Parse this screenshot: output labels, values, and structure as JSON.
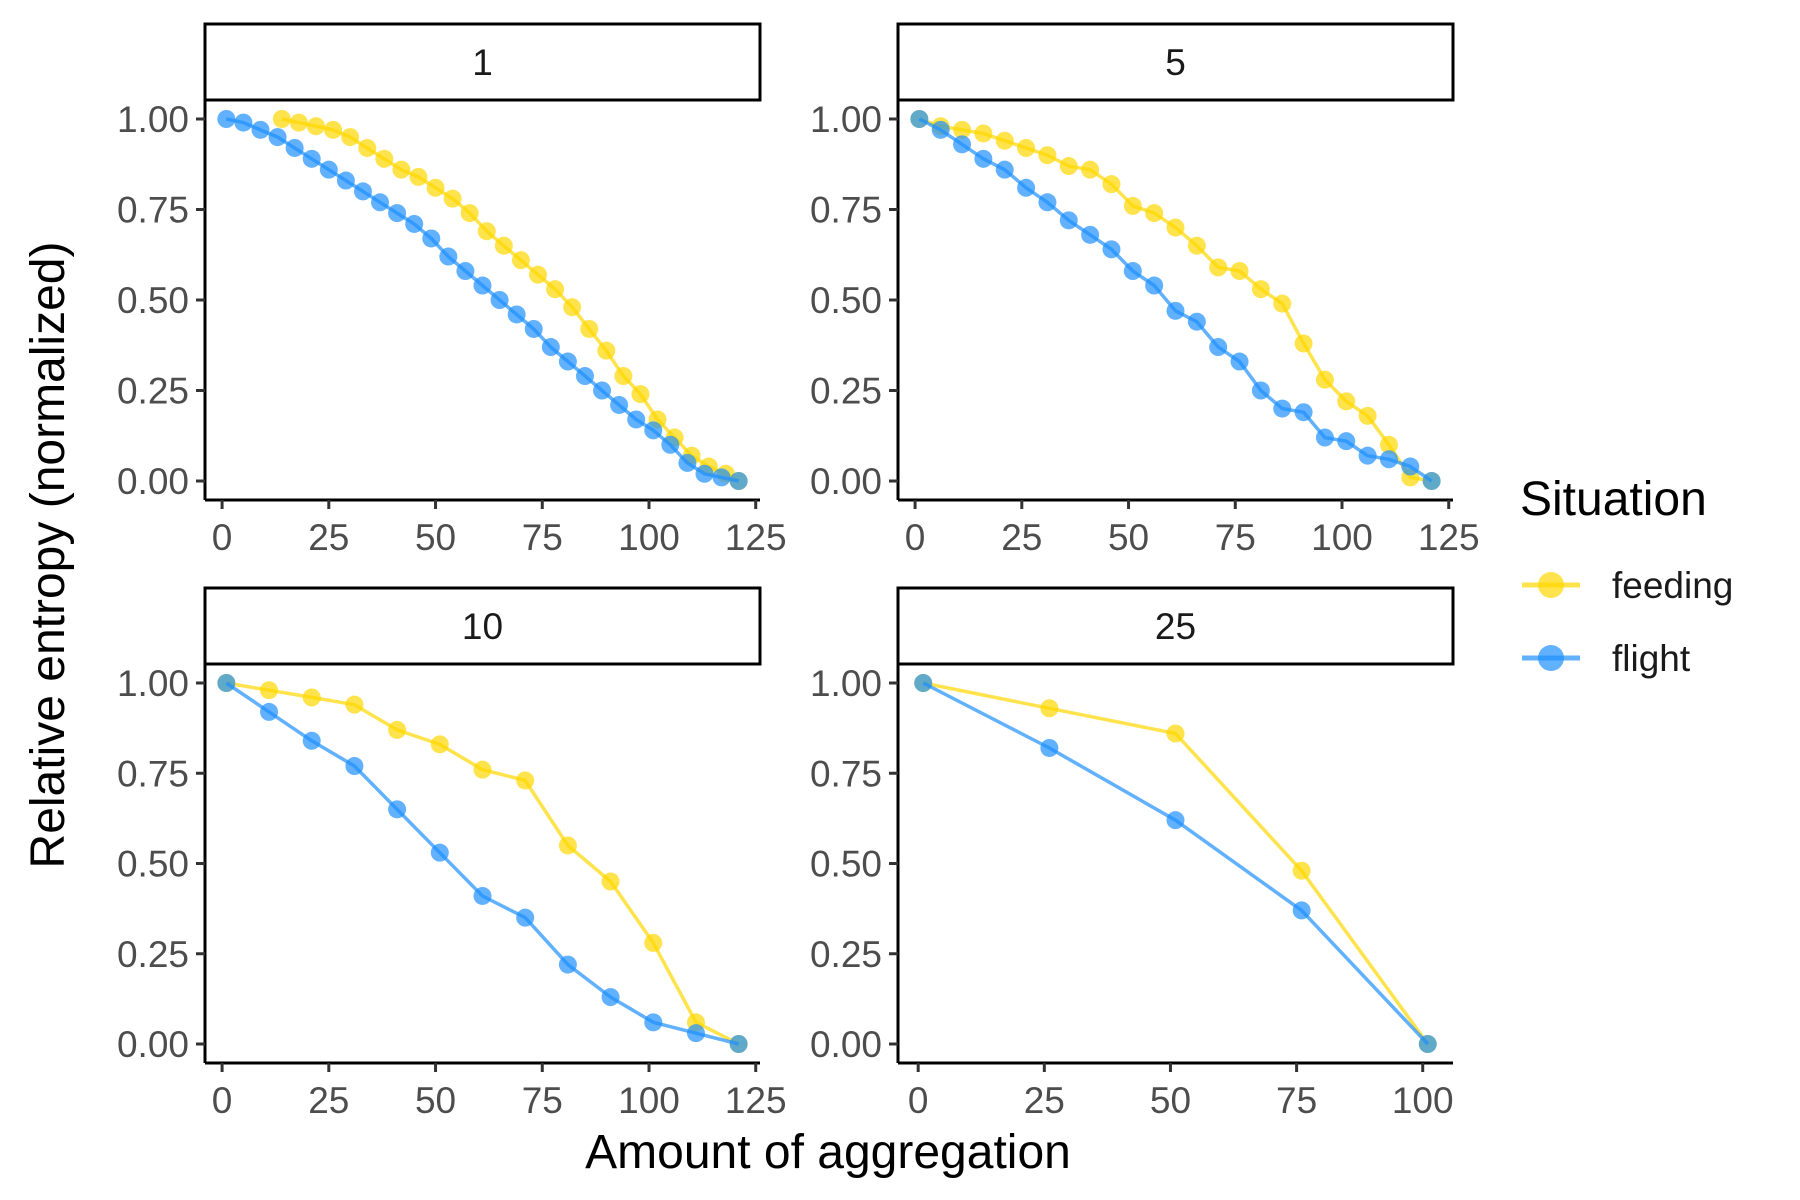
{
  "chart_data": {
    "type": "line",
    "xlabel": "Amount of aggregation",
    "ylabel": "Relative entropy (normalized)",
    "legend": {
      "title": "Situation",
      "position": "right",
      "entries": [
        {
          "name": "feeding",
          "color": "#FFD700"
        },
        {
          "name": "flight",
          "color": "#1E90FF"
        }
      ]
    },
    "y_ticks": [
      "0.00",
      "0.25",
      "0.50",
      "0.75",
      "1.00"
    ],
    "y_tick_values": [
      0,
      0.25,
      0.5,
      0.75,
      1
    ],
    "grid": false,
    "panels": [
      {
        "strip": "1",
        "xlim": [
          -4,
          126
        ],
        "x_ticks": [
          "0",
          "25",
          "50",
          "75",
          "100",
          "125"
        ],
        "x_tick_values": [
          0,
          25,
          50,
          75,
          100,
          125
        ],
        "series": [
          {
            "name": "feeding",
            "x": [
              14,
              18,
              22,
              26,
              30,
              34,
              38,
              42,
              46,
              50,
              54,
              58,
              62,
              66,
              70,
              74,
              78,
              82,
              86,
              90,
              94,
              98,
              102,
              106,
              110,
              114,
              118,
              121
            ],
            "y": [
              1.0,
              0.99,
              0.98,
              0.97,
              0.95,
              0.92,
              0.89,
              0.86,
              0.84,
              0.81,
              0.78,
              0.74,
              0.69,
              0.65,
              0.61,
              0.57,
              0.53,
              0.48,
              0.42,
              0.36,
              0.29,
              0.24,
              0.17,
              0.12,
              0.07,
              0.04,
              0.02,
              0.0
            ]
          },
          {
            "name": "flight",
            "x": [
              1,
              5,
              9,
              13,
              17,
              21,
              25,
              29,
              33,
              37,
              41,
              45,
              49,
              53,
              57,
              61,
              65,
              69,
              73,
              77,
              81,
              85,
              89,
              93,
              97,
              101,
              105,
              109,
              113,
              117,
              121
            ],
            "y": [
              1.0,
              0.99,
              0.97,
              0.95,
              0.92,
              0.89,
              0.86,
              0.83,
              0.8,
              0.77,
              0.74,
              0.71,
              0.67,
              0.62,
              0.58,
              0.54,
              0.5,
              0.46,
              0.42,
              0.37,
              0.33,
              0.29,
              0.25,
              0.21,
              0.17,
              0.14,
              0.1,
              0.05,
              0.02,
              0.01,
              0.0
            ]
          }
        ]
      },
      {
        "strip": "5",
        "xlim": [
          -4,
          126
        ],
        "x_ticks": [
          "0",
          "25",
          "50",
          "75",
          "100",
          "125"
        ],
        "x_tick_values": [
          0,
          25,
          50,
          75,
          100,
          125
        ],
        "series": [
          {
            "name": "feeding",
            "x": [
              1,
              6,
              11,
              16,
              21,
              26,
              31,
              36,
              41,
              46,
              51,
              56,
              61,
              66,
              71,
              76,
              81,
              86,
              91,
              96,
              101,
              106,
              111,
              116,
              121
            ],
            "y": [
              1.0,
              0.98,
              0.97,
              0.96,
              0.94,
              0.92,
              0.9,
              0.87,
              0.86,
              0.82,
              0.76,
              0.74,
              0.7,
              0.65,
              0.59,
              0.58,
              0.53,
              0.49,
              0.38,
              0.28,
              0.22,
              0.18,
              0.1,
              0.01,
              0.0
            ]
          },
          {
            "name": "flight",
            "x": [
              1,
              6,
              11,
              16,
              21,
              26,
              31,
              36,
              41,
              46,
              51,
              56,
              61,
              66,
              71,
              76,
              81,
              86,
              91,
              96,
              101,
              106,
              111,
              116,
              121
            ],
            "y": [
              1.0,
              0.97,
              0.93,
              0.89,
              0.86,
              0.81,
              0.77,
              0.72,
              0.68,
              0.64,
              0.58,
              0.54,
              0.47,
              0.44,
              0.37,
              0.33,
              0.25,
              0.2,
              0.19,
              0.12,
              0.11,
              0.07,
              0.06,
              0.04,
              0.0
            ]
          }
        ]
      },
      {
        "strip": "10",
        "xlim": [
          -4,
          126
        ],
        "x_ticks": [
          "0",
          "25",
          "50",
          "75",
          "100",
          "125"
        ],
        "x_tick_values": [
          0,
          25,
          50,
          75,
          100,
          125
        ],
        "series": [
          {
            "name": "feeding",
            "x": [
              1,
              11,
              21,
              31,
              41,
              51,
              61,
              71,
              81,
              91,
              101,
              111,
              121
            ],
            "y": [
              1.0,
              0.98,
              0.96,
              0.94,
              0.87,
              0.83,
              0.76,
              0.73,
              0.55,
              0.45,
              0.28,
              0.06,
              0.0
            ]
          },
          {
            "name": "flight",
            "x": [
              1,
              11,
              21,
              31,
              41,
              51,
              61,
              71,
              81,
              91,
              101,
              111,
              121
            ],
            "y": [
              1.0,
              0.92,
              0.84,
              0.77,
              0.65,
              0.53,
              0.41,
              0.35,
              0.22,
              0.13,
              0.06,
              0.03,
              0.0
            ]
          }
        ]
      },
      {
        "strip": "25",
        "xlim": [
          -4,
          106
        ],
        "x_ticks": [
          "0",
          "25",
          "50",
          "75",
          "100"
        ],
        "x_tick_values": [
          0,
          25,
          50,
          75,
          100
        ],
        "series": [
          {
            "name": "feeding",
            "x": [
              1,
              26,
              51,
              76,
              101
            ],
            "y": [
              1.0,
              0.93,
              0.86,
              0.48,
              0.0
            ]
          },
          {
            "name": "flight",
            "x": [
              1,
              26,
              51,
              76,
              101
            ],
            "y": [
              1.0,
              0.82,
              0.62,
              0.37,
              0.0
            ]
          }
        ]
      }
    ]
  }
}
